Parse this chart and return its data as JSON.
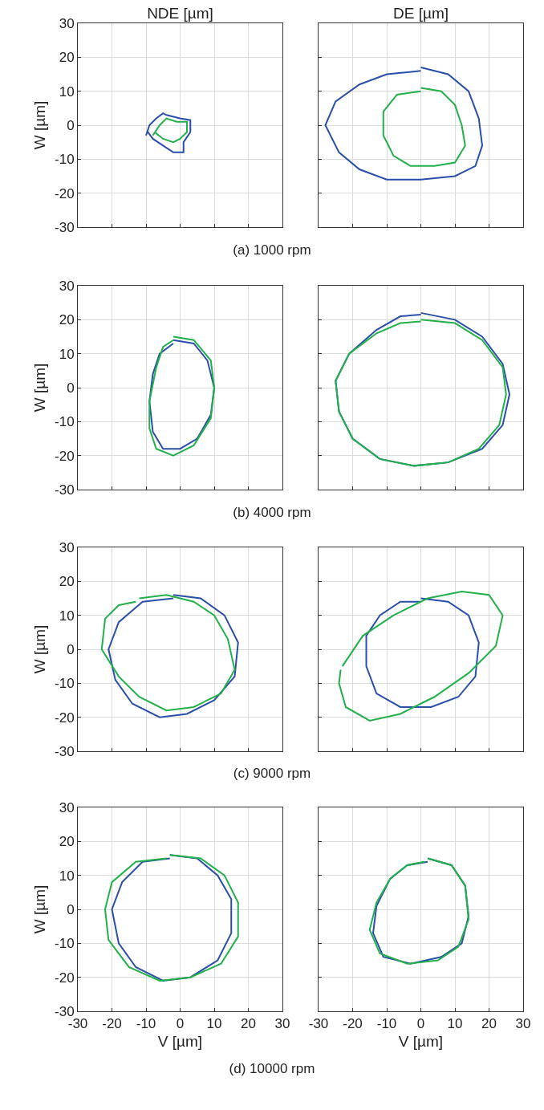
{
  "chart_data": [
    {
      "type": "line",
      "title": "NDE [µm]",
      "ylabel": "W [µm]",
      "annotations": [
        "(a) 1000 rpm"
      ],
      "xlim": [
        -30,
        30
      ],
      "ylim": [
        -30,
        30
      ],
      "xticks": [
        -30,
        -20,
        -10,
        0,
        10,
        20,
        30
      ],
      "yticks": [
        -30,
        -20,
        -10,
        0,
        10,
        20,
        30
      ],
      "grid": true,
      "tick_labels": "y",
      "series": [
        {
          "color": "#2a4fa8",
          "x": [
            -10,
            -9,
            -7,
            -5,
            -4,
            0,
            3,
            3,
            1,
            1,
            -2,
            -5,
            -8,
            -9.5
          ],
          "values": [
            -3,
            0,
            2,
            3.5,
            3,
            2,
            1.5,
            -2,
            -5,
            -8,
            -8,
            -6,
            -4,
            -2
          ]
        },
        {
          "color": "#22b04a",
          "x": [
            -8,
            -6,
            -4,
            -1,
            2,
            2,
            0,
            -2,
            -5,
            -7.5
          ],
          "values": [
            -3,
            0,
            2,
            1,
            1,
            -2,
            -4,
            -5,
            -4,
            -2
          ]
        }
      ]
    },
    {
      "type": "line",
      "title": "DE [µm]",
      "xlim": [
        -30,
        30
      ],
      "ylim": [
        -30,
        30
      ],
      "xticks": [
        -30,
        -20,
        -10,
        0,
        10,
        20,
        30
      ],
      "yticks": [
        -30,
        -20,
        -10,
        0,
        10,
        20,
        30
      ],
      "grid": true,
      "tick_labels": false,
      "series": [
        {
          "color": "#2a4fa8",
          "x": [
            0,
            8,
            14,
            17,
            18,
            16,
            10,
            0,
            -10,
            -18,
            -24,
            -28,
            -25,
            -18,
            -10,
            0
          ],
          "values": [
            17,
            15,
            10,
            2,
            -6,
            -12,
            -15,
            -16,
            -16,
            -13,
            -8,
            0,
            7,
            12,
            15,
            16
          ]
        },
        {
          "color": "#22b04a",
          "x": [
            0,
            6,
            10,
            12,
            13,
            10,
            4,
            -3,
            -8,
            -11,
            -11,
            -7,
            0
          ],
          "values": [
            11,
            10,
            6,
            0,
            -6,
            -11,
            -12,
            -12,
            -9,
            -3,
            4,
            9,
            10
          ]
        }
      ]
    },
    {
      "type": "line",
      "ylabel": "W [µm]",
      "annotations": [
        "(b) 4000 rpm"
      ],
      "xlim": [
        -30,
        30
      ],
      "ylim": [
        -30,
        30
      ],
      "xticks": [
        -30,
        -20,
        -10,
        0,
        10,
        20,
        30
      ],
      "yticks": [
        -30,
        -20,
        -10,
        0,
        10,
        20,
        30
      ],
      "grid": true,
      "tick_labels": "y",
      "series": [
        {
          "color": "#2a4fa8",
          "x": [
            -2,
            4,
            8,
            10,
            9,
            5,
            0,
            -5,
            -8,
            -9,
            -8,
            -6,
            -2
          ],
          "values": [
            14,
            13,
            8,
            0,
            -8,
            -15,
            -18,
            -18,
            -13,
            -4,
            4,
            10,
            13
          ]
        },
        {
          "color": "#22b04a",
          "x": [
            -2,
            4,
            9,
            10,
            9,
            4,
            -2,
            -7,
            -9,
            -9,
            -7,
            -5,
            -2
          ],
          "values": [
            15,
            14,
            8,
            0,
            -9,
            -17,
            -20,
            -18,
            -12,
            -4,
            6,
            12,
            14
          ]
        }
      ]
    },
    {
      "type": "line",
      "xlim": [
        -30,
        30
      ],
      "ylim": [
        -30,
        30
      ],
      "xticks": [
        -30,
        -20,
        -10,
        0,
        10,
        20,
        30
      ],
      "yticks": [
        -30,
        -20,
        -10,
        0,
        10,
        20,
        30
      ],
      "grid": true,
      "tick_labels": false,
      "series": [
        {
          "color": "#2a4fa8",
          "x": [
            0,
            10,
            18,
            24,
            26,
            24,
            18,
            8,
            -2,
            -12,
            -20,
            -24,
            -25,
            -21,
            -13,
            -6,
            0
          ],
          "values": [
            22,
            20,
            15,
            7,
            -2,
            -11,
            -18,
            -22,
            -23,
            -21,
            -15,
            -7,
            2,
            10,
            17,
            21,
            21.5
          ]
        },
        {
          "color": "#22b04a",
          "x": [
            0,
            10,
            18,
            24,
            25,
            23,
            17,
            8,
            -2,
            -12,
            -20,
            -24,
            -25,
            -21,
            -13,
            -6,
            0
          ],
          "values": [
            20,
            19,
            14,
            6,
            -2,
            -11,
            -18,
            -22,
            -23,
            -21,
            -15,
            -7,
            2,
            10,
            16,
            19,
            19.5
          ]
        }
      ]
    },
    {
      "type": "line",
      "ylabel": "W [µm]",
      "annotations": [
        "(c) 9000 rpm"
      ],
      "xlim": [
        -30,
        30
      ],
      "ylim": [
        -30,
        30
      ],
      "xticks": [
        -30,
        -20,
        -10,
        0,
        10,
        20,
        30
      ],
      "yticks": [
        -30,
        -20,
        -10,
        0,
        10,
        20,
        30
      ],
      "grid": true,
      "tick_labels": "y",
      "series": [
        {
          "color": "#2a4fa8",
          "x": [
            -2,
            6,
            13,
            17,
            16,
            10,
            2,
            -6,
            -14,
            -19,
            -21,
            -18,
            -11,
            -2
          ],
          "values": [
            16,
            15,
            10,
            2,
            -8,
            -15,
            -19,
            -20,
            -16,
            -9,
            0,
            8,
            14,
            15
          ]
        },
        {
          "color": "#22b04a",
          "x": [
            -12,
            -4,
            4,
            10,
            14,
            16,
            12,
            4,
            -4,
            -12,
            -18,
            -23,
            -22,
            -18,
            -13
          ],
          "values": [
            15,
            16,
            14,
            10,
            3,
            -6,
            -13,
            -17,
            -18,
            -14,
            -8,
            0,
            9,
            13,
            14
          ]
        }
      ]
    },
    {
      "type": "line",
      "xlim": [
        -30,
        30
      ],
      "ylim": [
        -30,
        30
      ],
      "xticks": [
        -30,
        -20,
        -10,
        0,
        10,
        20,
        30
      ],
      "yticks": [
        -30,
        -20,
        -10,
        0,
        10,
        20,
        30
      ],
      "grid": true,
      "tick_labels": false,
      "series": [
        {
          "color": "#2a4fa8",
          "x": [
            0,
            8,
            14,
            17,
            16,
            11,
            3,
            -6,
            -13,
            -16,
            -16,
            -12,
            -6,
            0
          ],
          "values": [
            15,
            14,
            10,
            2,
            -8,
            -14,
            -17,
            -17,
            -13,
            -5,
            4,
            10,
            14,
            14
          ]
        },
        {
          "color": "#22b04a",
          "x": [
            -23,
            -17,
            -8,
            2,
            12,
            20,
            24,
            22,
            14,
            4,
            -6,
            -15,
            -22,
            -24,
            -23.5
          ],
          "values": [
            -5,
            4,
            10,
            15,
            17,
            16,
            10,
            1,
            -7,
            -14,
            -19,
            -21,
            -17,
            -10,
            -6
          ]
        }
      ]
    },
    {
      "type": "line",
      "ylabel": "W [µm]",
      "xlabel": "V [µm]",
      "xlim": [
        -30,
        30
      ],
      "ylim": [
        -30,
        30
      ],
      "xticks": [
        -30,
        -20,
        -10,
        0,
        10,
        20,
        30
      ],
      "yticks": [
        -30,
        -20,
        -10,
        0,
        10,
        20,
        30
      ],
      "grid": true,
      "series": [
        {
          "color": "#2a4fa8",
          "x": [
            -3,
            5,
            11,
            15,
            15,
            11,
            3,
            -5,
            -13,
            -18,
            -20,
            -17,
            -11,
            -3
          ],
          "values": [
            16,
            15,
            10,
            3,
            -7,
            -15,
            -20,
            -21,
            -17,
            -10,
            0,
            8,
            14,
            15
          ]
        },
        {
          "color": "#22b04a",
          "x": [
            -3,
            6,
            13,
            17,
            17,
            12,
            3,
            -6,
            -15,
            -21,
            -22,
            -20,
            -13,
            -4
          ],
          "values": [
            16,
            15,
            10,
            2,
            -8,
            -16,
            -20,
            -21,
            -17,
            -9,
            0,
            8,
            14,
            15
          ]
        }
      ]
    },
    {
      "type": "line",
      "xlabel": "V [µm]",
      "annotations": [
        "(d) 10000 rpm"
      ],
      "xlim": [
        -30,
        30
      ],
      "ylim": [
        -30,
        30
      ],
      "xticks": [
        -30,
        -20,
        -10,
        0,
        10,
        20,
        30
      ],
      "yticks": [
        -30,
        -20,
        -10,
        0,
        10,
        20,
        30
      ],
      "grid": true,
      "tick_labels": "x",
      "series": [
        {
          "color": "#2a4fa8",
          "x": [
            2,
            9,
            13,
            14,
            12,
            6,
            -3,
            -11,
            -14,
            -13,
            -9,
            -4,
            2
          ],
          "values": [
            15,
            13,
            7,
            -2,
            -10,
            -14,
            -16,
            -14,
            -7,
            1,
            9,
            13,
            14
          ]
        },
        {
          "color": "#22b04a",
          "x": [
            2,
            9,
            13,
            14,
            11,
            5,
            -4,
            -12,
            -15,
            -13,
            -9,
            -4,
            1
          ],
          "values": [
            15,
            13,
            7,
            -3,
            -11,
            -15,
            -16,
            -13,
            -6,
            2,
            9,
            13,
            14
          ]
        }
      ]
    }
  ]
}
